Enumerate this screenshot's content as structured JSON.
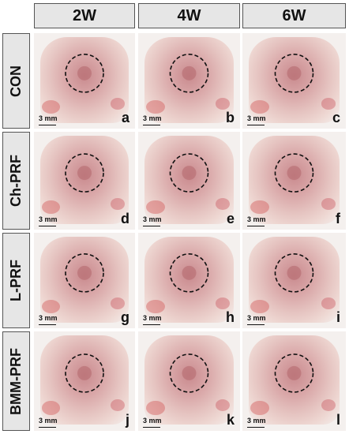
{
  "columns": [
    "2W",
    "4W",
    "6W"
  ],
  "rows": [
    {
      "label": "CON",
      "panels": [
        {
          "letter": "a",
          "scale": "3 mm"
        },
        {
          "letter": "b",
          "scale": "3 mm"
        },
        {
          "letter": "c",
          "scale": "3 mm"
        }
      ]
    },
    {
      "label": "Ch-PRF",
      "panels": [
        {
          "letter": "d",
          "scale": "3 mm"
        },
        {
          "letter": "e",
          "scale": "3 mm"
        },
        {
          "letter": "f",
          "scale": "3 mm"
        }
      ]
    },
    {
      "label": "L-PRF",
      "panels": [
        {
          "letter": "g",
          "scale": "3 mm"
        },
        {
          "letter": "h",
          "scale": "3 mm"
        },
        {
          "letter": "i",
          "scale": "3 mm"
        }
      ]
    },
    {
      "label": "BMM-PRF",
      "panels": [
        {
          "letter": "j",
          "scale": "3 mm"
        },
        {
          "letter": "k",
          "scale": "3 mm"
        },
        {
          "letter": "l",
          "scale": "3 mm"
        }
      ]
    }
  ]
}
